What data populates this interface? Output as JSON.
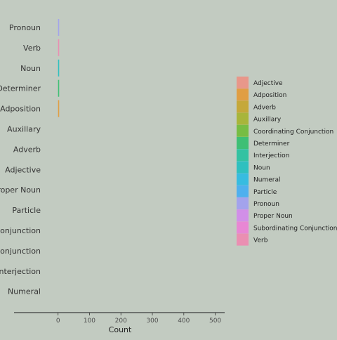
{
  "chart_data": {
    "type": "bar",
    "orientation": "horizontal",
    "xlabel": "Count",
    "ylabel": "",
    "xlim": [
      -140,
      530
    ],
    "xticks": [
      0,
      100,
      200,
      300,
      400,
      500
    ],
    "grid": false,
    "legend_position": "right",
    "categories": [
      "Pronoun",
      "Verb",
      "Noun",
      "Determiner",
      "Adposition",
      "Auxillary",
      "Adverb",
      "Adjective",
      "Proper Noun",
      "Particle",
      "Coordinating Conjunction",
      "Subordinating Conjunction",
      "Interjection",
      "Numeral"
    ],
    "values": [
      1,
      1,
      1,
      1,
      1,
      0,
      0,
      0,
      0,
      0,
      0,
      0,
      0,
      0
    ],
    "series": [
      {
        "name": "Adjective",
        "color": "#e8978a"
      },
      {
        "name": "Adposition",
        "color": "#e09e43"
      },
      {
        "name": "Adverb",
        "color": "#c5a83a"
      },
      {
        "name": "Auxillary",
        "color": "#a8b53b"
      },
      {
        "name": "Coordinating Conjunction",
        "color": "#77bd44"
      },
      {
        "name": "Determiner",
        "color": "#3fbf75"
      },
      {
        "name": "Interjection",
        "color": "#34c2a2"
      },
      {
        "name": "Noun",
        "color": "#2fc0bf"
      },
      {
        "name": "Numeral",
        "color": "#37bce0"
      },
      {
        "name": "Particle",
        "color": "#4fb0ee"
      },
      {
        "name": "Pronoun",
        "color": "#a3a3ec"
      },
      {
        "name": "Proper Noun",
        "color": "#d18fe8"
      },
      {
        "name": "Subordinating Conjunction",
        "color": "#e887d4"
      },
      {
        "name": "Verb",
        "color": "#ea8fb2"
      }
    ]
  }
}
